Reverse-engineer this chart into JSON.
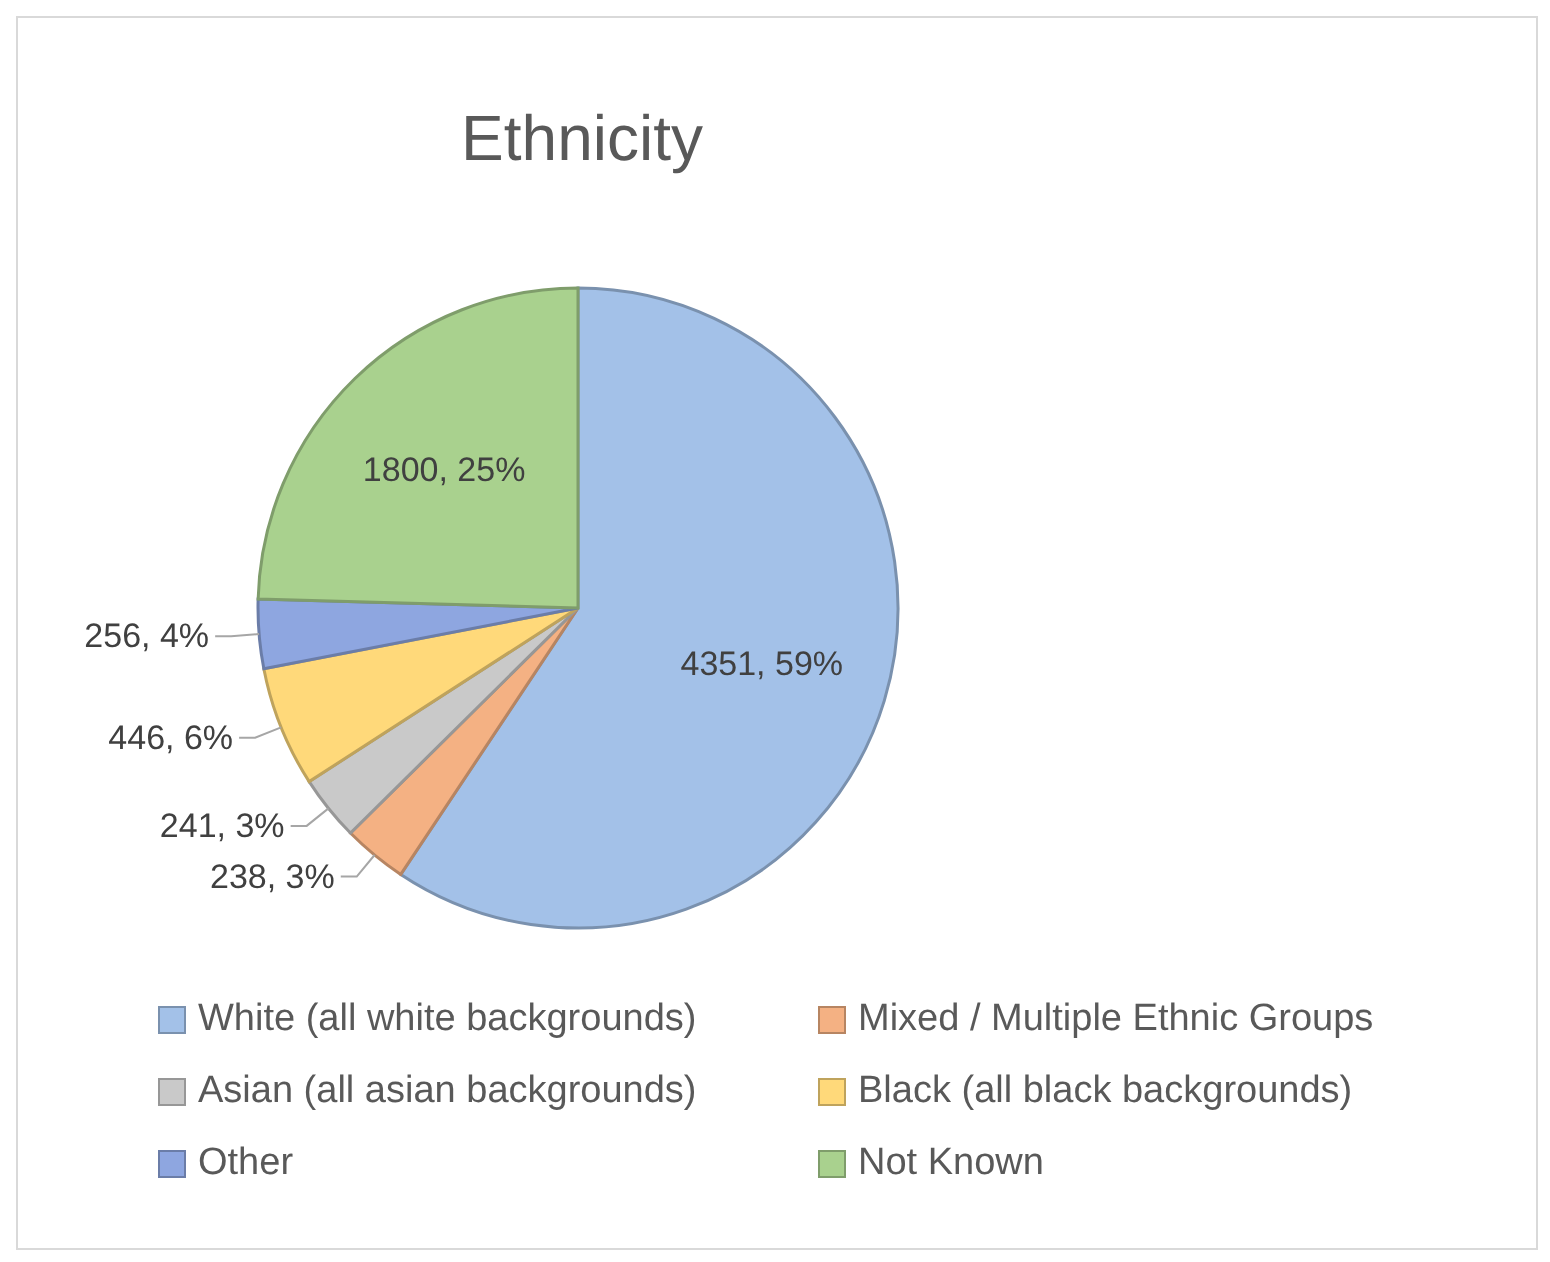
{
  "chart_data": {
    "type": "pie",
    "title": "Ethnicity",
    "categories": [
      "White (all white backgrounds)",
      "Mixed / Multiple Ethnic Groups",
      "Asian (all asian backgrounds)",
      "Black (all black backgrounds)",
      "Other",
      "Not Known"
    ],
    "values": [
      4351,
      238,
      241,
      446,
      256,
      1800
    ],
    "value_labels": [
      "4351, 59%",
      "238, 3%",
      "241, 3%",
      "446, 6%",
      "256, 4%",
      "1800, 25%"
    ],
    "colors": [
      "#a3c1e8",
      "#f4b183",
      "#c9c9c9",
      "#ffd97a",
      "#8ea6e0",
      "#a9d18e"
    ],
    "legend": "bottom"
  }
}
